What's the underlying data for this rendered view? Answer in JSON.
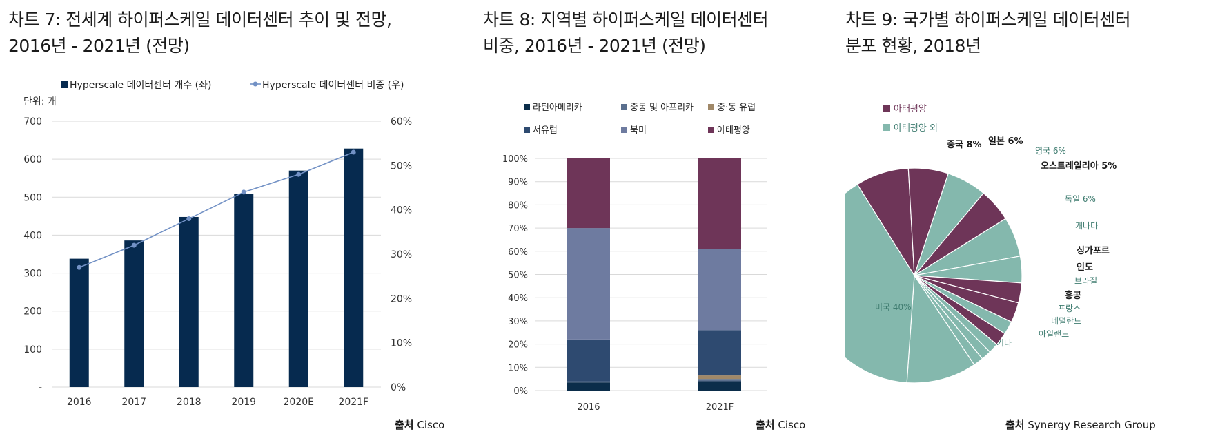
{
  "charts": [
    {
      "title_line1": "차트 7: 전세계 하이퍼스케일 데이터센터 추이 및 전망,",
      "title_line2": "2016년 - 2021년 (전망)",
      "unit": "단위: 개",
      "source_label": "출처",
      "source": "Cisco"
    },
    {
      "title_line1": "차트 8: 지역별 하이퍼스케일 데이터센터",
      "title_line2": "비중, 2016년 - 2021년 (전망)",
      "source_label": "출처",
      "source": "Cisco"
    },
    {
      "title_line1": "차트 9: 국가별 하이퍼스케일 데이터센터",
      "title_line2": "분포 현황, 2018년",
      "source_label": "출처",
      "source": "Synergy Research Group"
    }
  ],
  "colors": {
    "navy": "#062a4f",
    "line_blue": "#7291c5",
    "grid": "#d9d9d9",
    "latam": "#0b2d4a",
    "mea": "#5a6f8e",
    "ceeu": "#a08868",
    "weu": "#2e4a70",
    "na": "#6e7ba0",
    "apac": "#6e3558",
    "pie_apac": "#6e3558",
    "pie_other": "#84b8ad"
  },
  "chart_data": [
    {
      "type": "bar",
      "title": "차트 7: 전세계 하이퍼스케일 데이터센터 추이 및 전망, 2016년 - 2021년 (전망)",
      "categories": [
        "2016",
        "2017",
        "2018",
        "2019",
        "2020E",
        "2021F"
      ],
      "series": [
        {
          "name": "Hyperscale 데이터센터 개수 (좌)",
          "type": "bar",
          "axis": "left",
          "values": [
            338,
            386,
            448,
            509,
            570,
            628
          ]
        },
        {
          "name": "Hyperscale 데이터센터 비중 (우)",
          "type": "line",
          "axis": "right",
          "values": [
            27,
            32,
            38,
            44,
            48,
            53
          ]
        }
      ],
      "y_left": {
        "min": 0,
        "max": 700,
        "step": 100,
        "ticks": [
          "-",
          "100",
          "200",
          "300",
          "400",
          "500",
          "600",
          "700"
        ]
      },
      "y_right": {
        "min": 0,
        "max": 60,
        "step": 10,
        "ticks": [
          "0%",
          "10%",
          "20%",
          "30%",
          "40%",
          "50%",
          "60%"
        ]
      },
      "legend_position": "top",
      "grid": true
    },
    {
      "type": "bar",
      "stacked": true,
      "title": "차트 8: 지역별 하이퍼스케일 데이터센터 비중, 2016년 - 2021년 (전망)",
      "categories": [
        "2016",
        "2021F"
      ],
      "series": [
        {
          "name": "라틴아메리카",
          "values": [
            3.5,
            4
          ]
        },
        {
          "name": "중동 및 아프리카",
          "values": [
            0.5,
            1
          ]
        },
        {
          "name": "중·동 유럽",
          "values": [
            0,
            1.5
          ]
        },
        {
          "name": "서유럽",
          "values": [
            18,
            19.5
          ]
        },
        {
          "name": "북미",
          "values": [
            48,
            35
          ]
        },
        {
          "name": "아태평양",
          "values": [
            30,
            39
          ]
        }
      ],
      "ylim": [
        0,
        100
      ],
      "y_ticks": [
        "0%",
        "10%",
        "20%",
        "30%",
        "40%",
        "50%",
        "60%",
        "70%",
        "80%",
        "90%",
        "100%"
      ],
      "legend_position": "top",
      "grid": true
    },
    {
      "type": "pie",
      "title": "차트 9: 국가별 하이퍼스케일 데이터센터 분포 현황, 2018년",
      "legend": [
        "아태평양",
        "아태평양 외"
      ],
      "legend_position": "top-left",
      "slices": [
        {
          "label": "중국 8%",
          "value": 8,
          "group": "아태평양",
          "bold": true
        },
        {
          "label": "일본 6%",
          "value": 6,
          "group": "아태평양",
          "bold": true
        },
        {
          "label": "영국 6%",
          "value": 6,
          "group": "아태평양 외",
          "bold": false
        },
        {
          "label": "오스트레일리아 5%",
          "value": 5,
          "group": "아태평양",
          "bold": true
        },
        {
          "label": "독일 6%",
          "value": 6,
          "group": "아태평양 외",
          "bold": false
        },
        {
          "label": "캐나다",
          "value": 4,
          "group": "아태평양 외",
          "bold": false
        },
        {
          "label": "싱가포르",
          "value": 3,
          "group": "아태평양",
          "bold": true
        },
        {
          "label": "인도",
          "value": 3,
          "group": "아태평양",
          "bold": true
        },
        {
          "label": "브라질",
          "value": 2,
          "group": "아태평양 외",
          "bold": false
        },
        {
          "label": "홍콩",
          "value": 2,
          "group": "아태평양",
          "bold": true
        },
        {
          "label": "프랑스",
          "value": 1.5,
          "group": "아태평양 외",
          "bold": false
        },
        {
          "label": "네덜란드",
          "value": 1.5,
          "group": "아태평양 외",
          "bold": false
        },
        {
          "label": "아일랜드",
          "value": 1.5,
          "group": "아태평양 외",
          "bold": false
        },
        {
          "label": "기타",
          "value": 10.5,
          "group": "아태평양 외",
          "bold": false
        },
        {
          "label": "미국 40%",
          "value": 40,
          "group": "아태평양 외",
          "bold": false
        }
      ]
    }
  ]
}
